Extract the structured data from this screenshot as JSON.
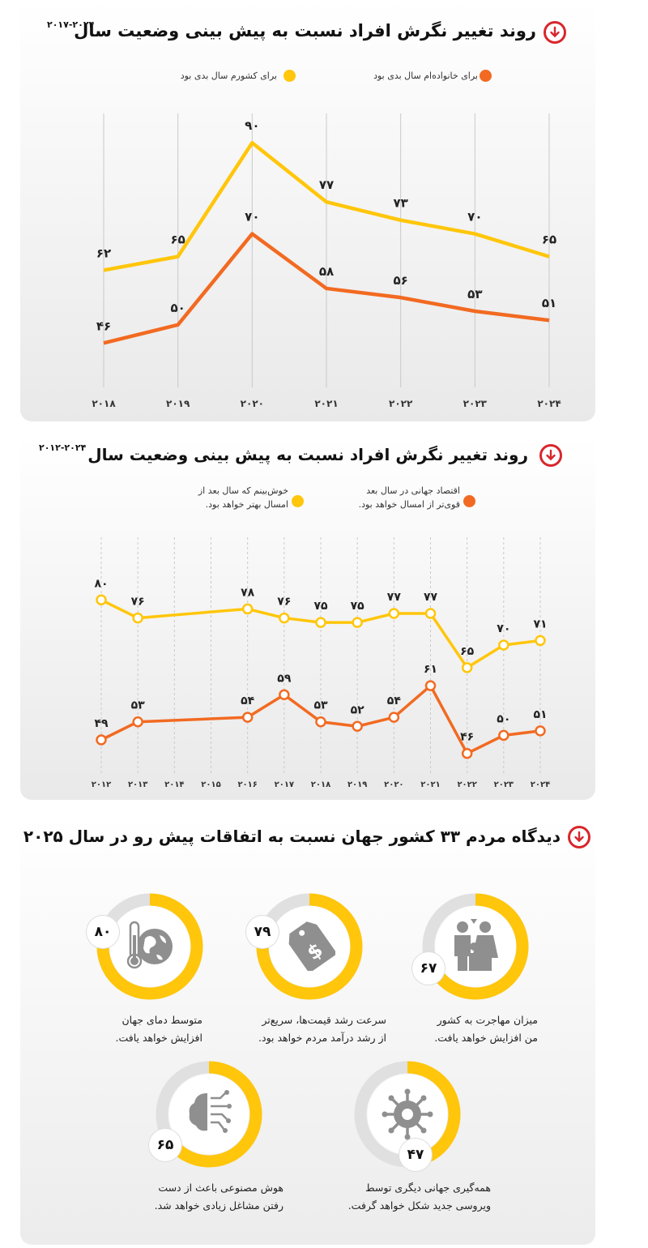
{
  "section1": {
    "title": "روند تغییر نگرش افراد نسبت به پیش بینی وضعیت سال",
    "title_sup": "۲۰۱۷-۲۰۲۴",
    "legend_yellow": "برای کشورم سال بدی بود",
    "legend_orange": "برای خانواده‌ام سال بدی بود"
  },
  "section2": {
    "title": "روند تغییر نگرش افراد نسبت به پیش بینی وضعیت سال",
    "title_sup": "۲۰۱۲-۲۰۲۴",
    "legend_yellow_line1": "خوش‌بینم که سال بعد از",
    "legend_yellow_line2": "امسال بهتر خواهد بود.",
    "legend_orange_line1": "اقتصاد جهانی در سال بعد",
    "legend_orange_line2": "قوی‌تر از امسال خواهد بود."
  },
  "section3": {
    "title": "دیدگاه مردم ۳۳ کشور جهان نسبت به اتفاقات پیش رو در سال ۲۰۲۵",
    "items": [
      {
        "value": 67,
        "label": "۶۷",
        "icon": "migration-family-icon",
        "caption_line1": "میزان مهاجرت به کشور",
        "caption_line2": "من افزایش خواهد یافت."
      },
      {
        "value": 79,
        "label": "۷۹",
        "icon": "price-tag-icon",
        "caption_line1": "سرعت رشد قیمت‌ها، سریع‌تر",
        "caption_line2": "از رشد درآمد مردم خواهد بود."
      },
      {
        "value": 80,
        "label": "۸۰",
        "icon": "globe-thermometer-icon",
        "caption_line1": "متوسط دمای جهان",
        "caption_line2": "افزایش خواهد یافت."
      },
      {
        "value": 47,
        "label": "۴۷",
        "icon": "virus-icon",
        "caption_line1": "همه‌گیری جهانی دیگری توسط",
        "caption_line2": "ویروسی جدید شکل خواهد گرفت."
      },
      {
        "value": 65,
        "label": "۶۵",
        "icon": "ai-brain-icon",
        "caption_line1": "هوش مصنوعی باعث از دست",
        "caption_line2": "رفتن مشاغل زیادی خواهد شد."
      }
    ]
  },
  "colors": {
    "yellow": "#ffc60b",
    "orange": "#f26a21",
    "red": "#d8262c",
    "ring_track": "#e0e0e0",
    "icon_gray": "#8f8f8f"
  },
  "chart_data": [
    {
      "type": "line",
      "x": [
        2018,
        2019,
        2020,
        2021,
        2022,
        2023,
        2024
      ],
      "x_labels": [
        "۲۰۱۸",
        "۲۰۱۹",
        "۲۰۲۰",
        "۲۰۲۱",
        "۲۰۲۲",
        "۲۰۲۳",
        "۲۰۲۴"
      ],
      "series": [
        {
          "name": "برای کشورم سال بدی بود",
          "color": "#ffc60b",
          "values": [
            62,
            65,
            90,
            77,
            73,
            70,
            65
          ],
          "labels": [
            "۶۲",
            "۶۵",
            "۹۰",
            "۷۷",
            "۷۳",
            "۷۰",
            "۶۵"
          ]
        },
        {
          "name": "برای خانواده‌ام سال بدی بود",
          "color": "#f26a21",
          "values": [
            46,
            50,
            70,
            58,
            56,
            53,
            51
          ],
          "labels": [
            "۴۶",
            "۵۰",
            "۷۰",
            "۵۸",
            "۵۶",
            "۵۳",
            "۵۱"
          ]
        }
      ],
      "ylim": [
        40,
        92
      ],
      "grid": "vertical"
    },
    {
      "type": "line",
      "x": [
        2012,
        2013,
        2014,
        2015,
        2016,
        2017,
        2018,
        2019,
        2020,
        2021,
        2022,
        2023,
        2024
      ],
      "x_labels": [
        "۲۰۱۲",
        "۲۰۱۳",
        "۲۰۱۴",
        "۲۰۱۵",
        "۲۰۱۶",
        "۲۰۱۷",
        "۲۰۱۸",
        "۲۰۱۹",
        "۲۰۲۰",
        "۲۰۲۱",
        "۲۰۲۲",
        "۲۰۲۳",
        "۲۰۲۴"
      ],
      "series": [
        {
          "name": "خوش‌بینم که سال بعد از امسال بهتر خواهد بود.",
          "color": "#ffc60b",
          "x": [
            2012,
            2013,
            2016,
            2017,
            2018,
            2019,
            2020,
            2021,
            2022,
            2023,
            2024
          ],
          "values": [
            80,
            76,
            78,
            76,
            75,
            75,
            77,
            77,
            65,
            70,
            71
          ],
          "labels": [
            "۸۰",
            "۷۶",
            "۷۸",
            "۷۶",
            "۷۵",
            "۷۵",
            "۷۷",
            "۷۷",
            "۶۵",
            "۷۰",
            "۷۱"
          ]
        },
        {
          "name": "اقتصاد جهانی در سال بعد قوی‌تر از امسال خواهد بود.",
          "color": "#f26a21",
          "x": [
            2012,
            2013,
            2016,
            2017,
            2018,
            2019,
            2020,
            2021,
            2022,
            2023,
            2024
          ],
          "values": [
            49,
            53,
            54,
            59,
            53,
            52,
            54,
            61,
            46,
            50,
            51
          ],
          "labels": [
            "۴۹",
            "۵۳",
            "۵۴",
            "۵۹",
            "۵۳",
            "۵۲",
            "۵۴",
            "۶۱",
            "۴۶",
            "۵۰",
            "۵۱"
          ]
        }
      ],
      "ylim": [
        42,
        84
      ],
      "grid": "vertical-dashed"
    }
  ]
}
